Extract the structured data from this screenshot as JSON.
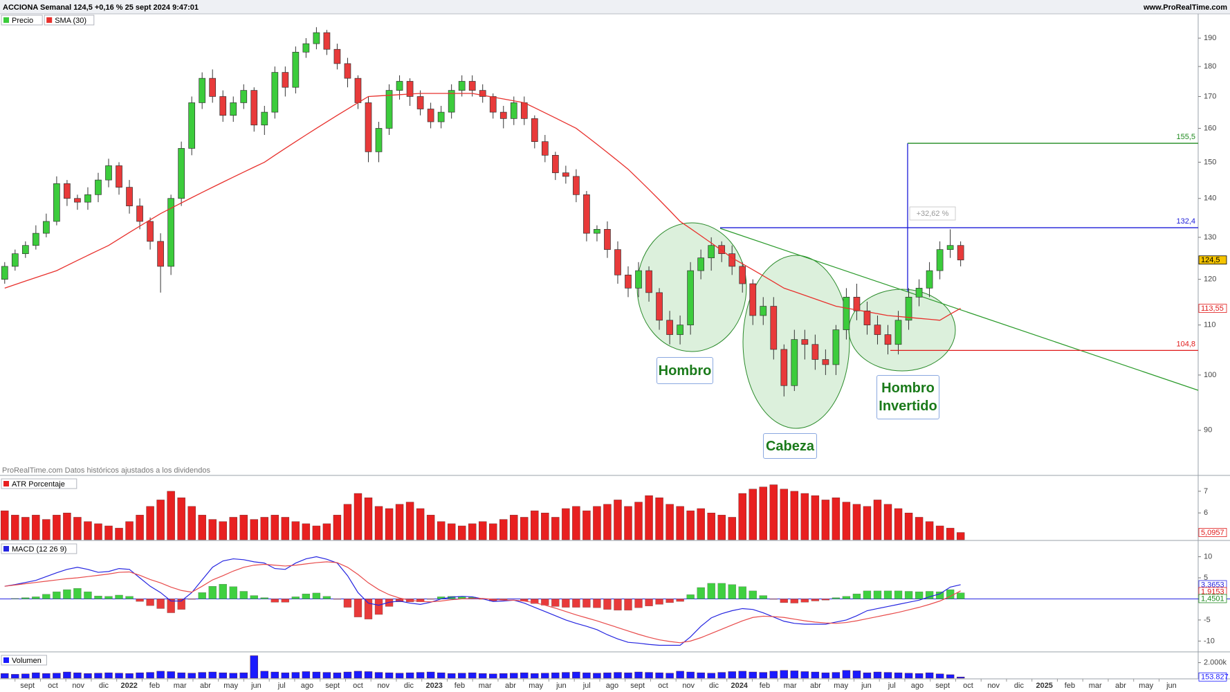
{
  "chart_data": [
    {
      "type": "candlestick",
      "title": "ACCIONA Semanal 124,5 +0,16 % 25 sept 2024 9:47:01",
      "source": "www.ProRealTime.com",
      "note": "ProRealTime.com Datos históricos ajustados a los dividendos",
      "up_color": "#3ccc3c",
      "down_color": "#e83a3a",
      "series": [
        {
          "name": "Precio",
          "open": [
            120,
            123,
            126,
            128,
            131,
            134,
            144,
            140,
            139,
            141,
            145,
            149,
            143,
            138,
            134,
            129,
            123,
            140,
            154,
            168,
            176,
            170,
            164,
            168,
            172,
            161,
            165,
            178,
            173,
            185,
            188,
            192,
            186,
            181,
            176,
            168,
            153,
            160,
            172,
            175,
            170,
            166,
            162,
            165,
            172,
            175,
            172,
            170,
            165,
            163,
            168,
            163,
            156,
            152,
            147,
            146,
            141,
            131,
            132,
            127,
            121,
            118,
            122,
            117,
            111,
            108,
            110,
            122,
            125,
            128,
            126,
            123,
            119,
            112,
            114,
            105,
            98,
            107,
            106,
            103,
            102,
            109,
            116,
            113,
            110,
            108,
            106,
            111,
            116,
            118,
            122,
            127,
            128
          ],
          "high": [
            124,
            127,
            129,
            133,
            136,
            146,
            145,
            141,
            143,
            147,
            151,
            150,
            145,
            140,
            135,
            131,
            141,
            156,
            170,
            178,
            179,
            172,
            170,
            174,
            173,
            167,
            180,
            180,
            187,
            190,
            194,
            193,
            188,
            183,
            177,
            170,
            162,
            174,
            177,
            176,
            172,
            168,
            167,
            174,
            177,
            177,
            174,
            171,
            167,
            170,
            170,
            164,
            158,
            153,
            149,
            148,
            142,
            133,
            134,
            129,
            123,
            124,
            123,
            118,
            113,
            112,
            124,
            127,
            130,
            129,
            128,
            124,
            120,
            116,
            116,
            106,
            109,
            109,
            108,
            105,
            110,
            118,
            119,
            115,
            112,
            110,
            113,
            118,
            120,
            124,
            129,
            132,
            129
          ],
          "low": [
            119,
            122,
            125,
            127,
            130,
            133,
            138,
            137,
            137,
            139,
            143,
            141,
            136,
            132,
            127,
            117,
            121,
            138,
            152,
            166,
            168,
            162,
            162,
            166,
            159,
            158,
            163,
            170,
            171,
            183,
            186,
            184,
            179,
            173,
            166,
            150,
            150,
            158,
            169,
            167,
            164,
            160,
            160,
            163,
            170,
            170,
            168,
            163,
            160,
            161,
            161,
            154,
            150,
            145,
            144,
            139,
            129,
            129,
            125,
            119,
            116,
            116,
            115,
            109,
            106,
            106,
            108,
            120,
            122,
            124,
            121,
            117,
            110,
            110,
            103,
            96,
            97,
            103,
            101,
            100,
            100,
            107,
            111,
            108,
            106,
            104,
            104,
            109,
            114,
            116,
            120,
            125,
            123
          ],
          "close": [
            123,
            126,
            128,
            131,
            134,
            144,
            140,
            139,
            141,
            145,
            149,
            143,
            138,
            134,
            129,
            123,
            140,
            154,
            168,
            176,
            170,
            164,
            168,
            172,
            161,
            165,
            178,
            173,
            185,
            188,
            192,
            186,
            181,
            176,
            168,
            153,
            160,
            172,
            175,
            170,
            166,
            162,
            165,
            172,
            175,
            172,
            170,
            165,
            163,
            168,
            163,
            156,
            152,
            147,
            146,
            141,
            131,
            132,
            127,
            121,
            118,
            122,
            117,
            111,
            108,
            110,
            122,
            125,
            128,
            126,
            123,
            119,
            112,
            114,
            105,
            98,
            107,
            106,
            103,
            102,
            109,
            116,
            113,
            110,
            108,
            106,
            111,
            116,
            118,
            122,
            127,
            128,
            124.5
          ]
        }
      ],
      "overlay": {
        "name": "SMA (30)",
        "color": "#e8302c",
        "values": [
          118,
          118.8,
          119.6,
          120.4,
          121.2,
          122,
          123.2,
          124.4,
          125.6,
          126.8,
          128,
          129.6,
          131.2,
          132.8,
          134.4,
          136,
          137.4,
          138.8,
          140.2,
          141.6,
          143,
          144.4,
          145.8,
          147.2,
          148.6,
          150,
          152,
          154,
          156,
          158,
          160,
          162,
          164,
          166,
          168,
          170,
          170.2,
          170.4,
          170.6,
          170.8,
          171,
          171,
          171,
          171,
          171,
          171,
          170.4,
          169.8,
          169.2,
          168.6,
          168,
          166.4,
          164.8,
          163.2,
          161.6,
          160,
          157.6,
          155.2,
          152.8,
          150.4,
          148,
          145.2,
          142.4,
          139.6,
          136.8,
          134,
          132.2,
          130.4,
          128.6,
          126.8,
          125,
          123.6,
          122.2,
          120.8,
          119.4,
          118,
          117.2,
          116.4,
          115.6,
          114.8,
          114,
          113.6,
          113.2,
          112.8,
          112.4,
          112,
          111.8,
          111.6,
          111.4,
          111.2,
          111,
          112.3,
          113.55
        ]
      },
      "log_scale": true,
      "ylim": [
        82.7,
        199
      ],
      "yticks": [
        90,
        100,
        110,
        120,
        130,
        140,
        150,
        160,
        170,
        180,
        190
      ],
      "levels": [
        {
          "value": 155.5,
          "label": "155,5",
          "color": "#1e8a1e"
        },
        {
          "value": 132.4,
          "label": "132,4",
          "color": "#1a1ad8"
        },
        {
          "value": 104.8,
          "label": "104,8",
          "color": "#e01818"
        }
      ],
      "tags": [
        {
          "value": 124.5,
          "label": "124,5",
          "color": "#000000",
          "background": "#f5c400"
        },
        {
          "value": 113.55,
          "label": "113,55",
          "color": "#e01818",
          "background": "#ffffff"
        }
      ],
      "annotations": [
        "Hombro",
        "Cabeza",
        "Hombro Invertido",
        "+32,62 %"
      ]
    },
    {
      "type": "bar",
      "title": "ATR Porcentaje",
      "color": "#e82020",
      "values": [
        6.1,
        5.9,
        5.8,
        5.9,
        5.7,
        5.9,
        6.0,
        5.8,
        5.6,
        5.5,
        5.4,
        5.3,
        5.6,
        5.9,
        6.3,
        6.6,
        7.0,
        6.7,
        6.3,
        5.9,
        5.7,
        5.6,
        5.8,
        5.9,
        5.7,
        5.8,
        5.9,
        5.8,
        5.6,
        5.5,
        5.4,
        5.5,
        5.9,
        6.4,
        6.9,
        6.7,
        6.3,
        6.2,
        6.4,
        6.5,
        6.2,
        5.9,
        5.6,
        5.5,
        5.4,
        5.5,
        5.6,
        5.5,
        5.7,
        5.9,
        5.8,
        6.1,
        6.0,
        5.8,
        6.2,
        6.3,
        6.1,
        6.3,
        6.4,
        6.6,
        6.3,
        6.5,
        6.8,
        6.7,
        6.4,
        6.3,
        6.1,
        6.2,
        6.0,
        5.9,
        5.8,
        6.9,
        7.1,
        7.2,
        7.3,
        7.1,
        7.0,
        6.9,
        6.8,
        6.6,
        6.7,
        6.5,
        6.4,
        6.3,
        6.6,
        6.4,
        6.2,
        6.0,
        5.8,
        5.6,
        5.4,
        5.3,
        5.0957
      ],
      "ylim": [
        4.76,
        7.7
      ],
      "yticks": [
        6,
        7
      ],
      "tags": [
        {
          "value": 5.0957,
          "label": "5,0957",
          "color": "#e01818",
          "background": "#ffffff"
        }
      ]
    },
    {
      "type": "line",
      "title": "MACD (12 26 9)",
      "series": [
        {
          "color": "#40d040",
          "negative_color": "#e83a3a",
          "style": "bar",
          "values": [
            0,
            0.1,
            0.3,
            0.5,
            1.1,
            1.7,
            2.2,
            2.5,
            1.7,
            0.7,
            0.6,
            0.9,
            0.6,
            -0.6,
            -1.6,
            -2.3,
            -3.3,
            -2.5,
            -0.1,
            1.5,
            3.0,
            3.5,
            2.9,
            1.8,
            0.8,
            0.3,
            -0.8,
            -0.8,
            0.5,
            1.2,
            1.4,
            0.6,
            -0.1,
            -2.0,
            -4.3,
            -4.8,
            -3.7,
            -1.8,
            -0.7,
            -0.7,
            -0.7,
            -0.1,
            0.5,
            0.6,
            0.6,
            0.4,
            -0.1,
            -0.5,
            -0.2,
            0,
            -0.5,
            -1.1,
            -1.5,
            -1.8,
            -2.0,
            -2.0,
            -2.0,
            -2.1,
            -2.5,
            -2.7,
            -2.7,
            -2.1,
            -1.7,
            -1.3,
            -0.9,
            -0.6,
            1.0,
            2.7,
            3.7,
            3.7,
            3.4,
            2.9,
            1.9,
            0.8,
            -0.1,
            -0.9,
            -1.0,
            -0.8,
            -0.5,
            -0.3,
            0.3,
            0.6,
            1.2,
            1.9,
            1.9,
            1.9,
            1.9,
            1.8,
            1.7,
            1.8,
            1.7,
            2.2,
            1.4501
          ]
        },
        {
          "color": "#2424e0",
          "values": [
            3.0,
            3.4,
            3.9,
            4.4,
            5.3,
            6.2,
            7.0,
            7.5,
            7.0,
            6.3,
            6.5,
            7.2,
            7.0,
            5.0,
            3.0,
            1.5,
            -0.5,
            -0.5,
            1.5,
            4.5,
            7.5,
            9.0,
            9.5,
            9.3,
            8.8,
            8.5,
            7.2,
            7.0,
            8.5,
            9.5,
            10.0,
            9.4,
            8.5,
            5.5,
            1.5,
            -1.0,
            -1.5,
            -0.8,
            -0.5,
            -1.0,
            -1.3,
            -0.8,
            0.0,
            0.4,
            0.6,
            0.5,
            0.0,
            -0.6,
            -0.5,
            -0.3,
            -1.0,
            -2.0,
            -3.0,
            -4.0,
            -5.0,
            -5.8,
            -6.5,
            -7.3,
            -8.5,
            -9.5,
            -10.3,
            -10.5,
            -10.8,
            -11.0,
            -11.0,
            -11.0,
            -9.0,
            -6.5,
            -4.5,
            -3.5,
            -2.8,
            -2.3,
            -2.5,
            -3.3,
            -4.3,
            -5.3,
            -5.8,
            -6.0,
            -6.0,
            -6.0,
            -5.5,
            -5.0,
            -4.0,
            -2.8,
            -2.3,
            -1.8,
            -1.3,
            -0.8,
            -0.3,
            0.5,
            1.2,
            2.8,
            3.3653
          ]
        },
        {
          "color": "#e84a4a",
          "values": [
            3.0,
            3.3,
            3.6,
            3.9,
            4.2,
            4.5,
            4.8,
            5.0,
            5.3,
            5.6,
            5.9,
            6.3,
            6.4,
            5.6,
            4.6,
            3.8,
            2.8,
            2.0,
            1.6,
            3.0,
            4.5,
            5.5,
            6.6,
            7.5,
            8.0,
            8.2,
            8.0,
            7.8,
            8.0,
            8.3,
            8.6,
            8.8,
            8.6,
            7.5,
            5.8,
            3.8,
            2.2,
            1.0,
            0.2,
            -0.3,
            -0.6,
            -0.7,
            -0.5,
            -0.2,
            0.0,
            0.1,
            0.1,
            -0.1,
            -0.3,
            -0.3,
            -0.5,
            -0.9,
            -1.5,
            -2.2,
            -3.0,
            -3.8,
            -4.5,
            -5.2,
            -6.0,
            -6.8,
            -7.6,
            -8.4,
            -9.1,
            -9.7,
            -10.1,
            -10.4,
            -10.0,
            -9.2,
            -8.2,
            -7.2,
            -6.2,
            -5.2,
            -4.4,
            -4.1,
            -4.2,
            -4.4,
            -4.8,
            -5.2,
            -5.5,
            -5.7,
            -5.8,
            -5.6,
            -5.2,
            -4.7,
            -4.2,
            -3.7,
            -3.2,
            -2.6,
            -2.0,
            -1.3,
            -0.5,
            0.6,
            1.9153
          ]
        }
      ],
      "zero_color": "#2424e0",
      "ylim": [
        -12.4,
        13.7
      ],
      "yticks": [
        -10,
        -5,
        0,
        5,
        10
      ],
      "tags": [
        {
          "value": 3.3653,
          "label": "3,3653",
          "color": "#2424e0",
          "background": "#ffffff"
        },
        {
          "value": 1.9153,
          "label": "1,9153",
          "color": "#e01818",
          "background": "#ffffff"
        },
        {
          "value": 1.4501,
          "label": "1,4501",
          "color": "#1e8a1e",
          "background": "#ffffff"
        }
      ]
    },
    {
      "type": "bar",
      "title": "Volumen",
      "color": "#1a1aff",
      "values": [
        600000,
        500000,
        550000,
        700000,
        600000,
        650000,
        800000,
        700000,
        600000,
        650000,
        700000,
        650000,
        600000,
        700000,
        750000,
        900000,
        850000,
        700000,
        650000,
        750000,
        800000,
        700000,
        650000,
        700000,
        2900000,
        900000,
        800000,
        700000,
        750000,
        850000,
        800000,
        750000,
        700000,
        800000,
        900000,
        850000,
        750000,
        700000,
        650000,
        700000,
        750000,
        800000,
        700000,
        600000,
        650000,
        700000,
        600000,
        550000,
        600000,
        650000,
        700000,
        600000,
        650000,
        700000,
        750000,
        800000,
        700000,
        650000,
        700000,
        750000,
        700000,
        800000,
        750000,
        700000,
        650000,
        900000,
        800000,
        700000,
        650000,
        750000,
        850000,
        900000,
        800000,
        750000,
        900000,
        1000000,
        950000,
        850000,
        800000,
        700000,
        750000,
        1000000,
        950000,
        700000,
        800000,
        750000,
        700000,
        650000,
        600000,
        700000,
        550000,
        450000,
        153827
      ],
      "ylim": [
        0,
        3300000
      ],
      "yticks": [
        {
          "value": 2000000,
          "label": "2.000k"
        }
      ],
      "tags": [
        {
          "value": 153827,
          "label": "153.827",
          "color": "#1a1aff",
          "background": "#ffffff"
        }
      ],
      "x_axis_labels": [
        "sept",
        "oct",
        "nov",
        "dic",
        "2022",
        "feb",
        "mar",
        "abr",
        "may",
        "jun",
        "jul",
        "ago",
        "sept",
        "oct",
        "nov",
        "dic",
        "2023",
        "feb",
        "mar",
        "abr",
        "may",
        "jun",
        "jul",
        "ago",
        "sept",
        "oct",
        "nov",
        "dic",
        "2024",
        "feb",
        "mar",
        "abr",
        "may",
        "jun",
        "jul",
        "ago",
        "sept",
        "oct",
        "nov",
        "dic",
        "2025",
        "feb",
        "mar",
        "abr",
        "may",
        "jun"
      ]
    }
  ]
}
